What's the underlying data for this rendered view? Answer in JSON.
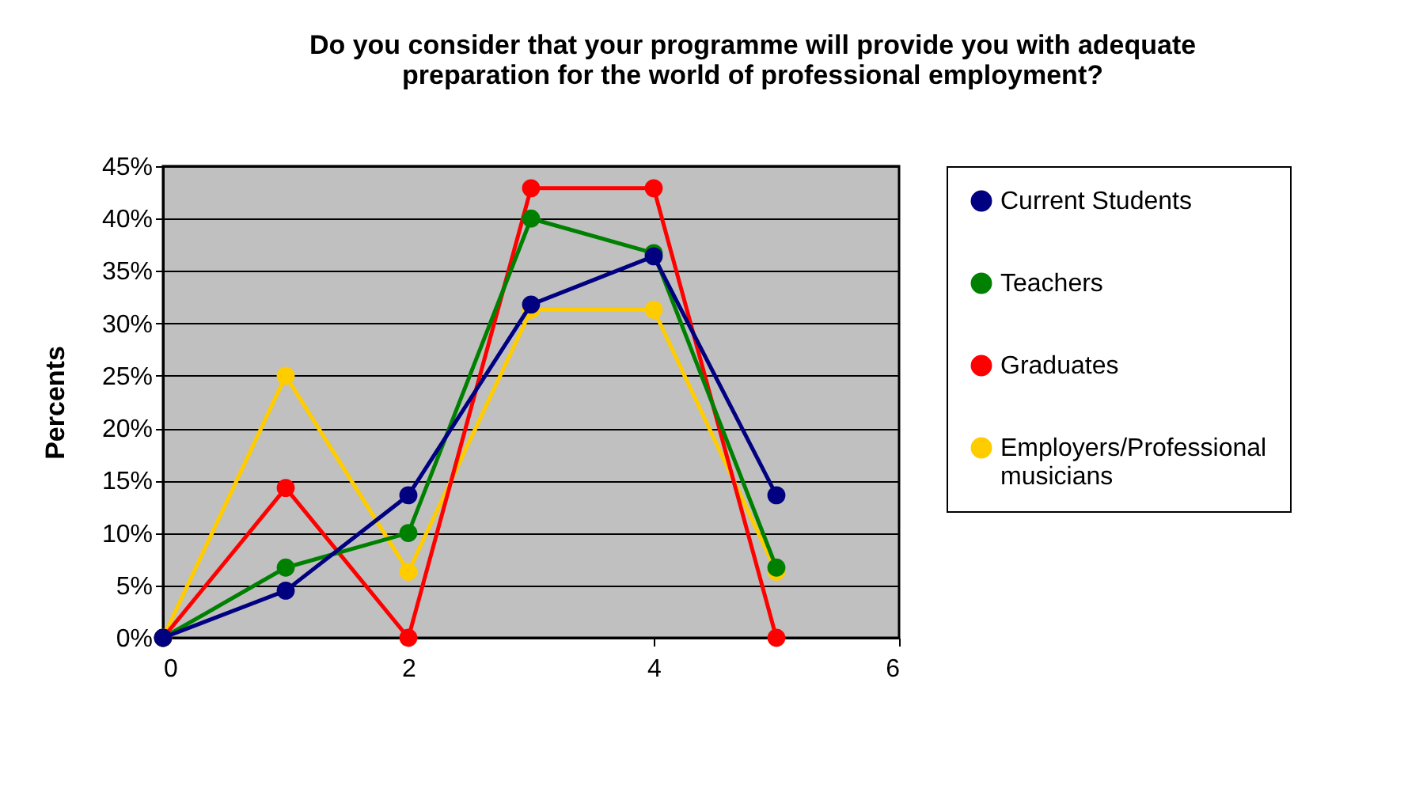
{
  "chart_data": {
    "type": "line",
    "title": "Do you consider that your programme will provide you with adequate preparation for the world of professional employment?",
    "ylabel": "Percents",
    "x": [
      0,
      1,
      2,
      3,
      4,
      5
    ],
    "series": [
      {
        "name": "Current Students",
        "color": "#000080",
        "values": [
          0,
          4.5,
          13.6,
          31.8,
          36.4,
          13.6
        ]
      },
      {
        "name": "Teachers",
        "color": "#008000",
        "values": [
          0,
          6.7,
          10,
          40,
          36.7,
          6.7
        ]
      },
      {
        "name": "Graduates",
        "color": "#ff0000",
        "values": [
          0,
          14.3,
          0,
          42.9,
          42.9,
          0
        ]
      },
      {
        "name": "Employers/Professional musicians",
        "color": "#ffcc00",
        "values": [
          0,
          25,
          6.3,
          31.3,
          31.3,
          6.3
        ]
      }
    ],
    "xlim": [
      0,
      6
    ],
    "xticks": [
      0,
      2,
      4,
      6
    ],
    "ylim": [
      0,
      45
    ],
    "yticks": [
      {
        "value": 0,
        "label": "0%"
      },
      {
        "value": 5,
        "label": "5%"
      },
      {
        "value": 10,
        "label": "10%"
      },
      {
        "value": 15,
        "label": "15%"
      },
      {
        "value": 20,
        "label": "20%"
      },
      {
        "value": 25,
        "label": "25%"
      },
      {
        "value": 30,
        "label": "30%"
      },
      {
        "value": 35,
        "label": "35%"
      },
      {
        "value": 40,
        "label": "40%"
      },
      {
        "value": 45,
        "label": "45%"
      }
    ],
    "grid": "y",
    "legend": "right",
    "marker": "circle",
    "line_style": "solid"
  }
}
